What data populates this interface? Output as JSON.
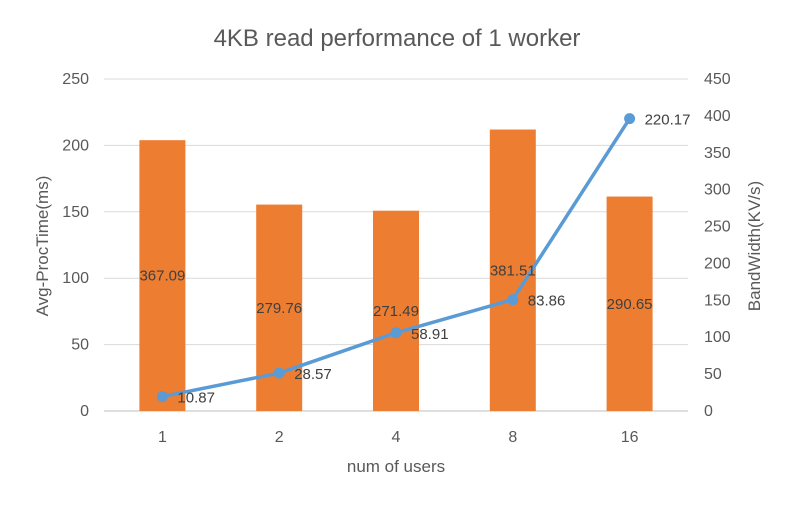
{
  "chart_data": {
    "type": "bar+line",
    "title": "4KB read performance of  1 worker",
    "xlabel": "num of users",
    "ylabel_left": "Avg-ProcTime(ms)",
    "ylabel_right": "BandWidth(KV/s)",
    "categories": [
      "1",
      "2",
      "4",
      "8",
      "16"
    ],
    "grid": true,
    "legend": "none",
    "axes": {
      "left": {
        "min": 0,
        "max": 250,
        "ticks": [
          0,
          50,
          100,
          150,
          200,
          250
        ]
      },
      "right": {
        "min": 0,
        "max": 450,
        "ticks": [
          0,
          50,
          100,
          150,
          200,
          250,
          300,
          350,
          400,
          450
        ]
      }
    },
    "series": [
      {
        "type": "bar",
        "axis": "right",
        "color": "#ed7d31",
        "values": [
          367.09,
          279.76,
          271.49,
          381.51,
          290.65
        ],
        "labels": [
          "367.09",
          "279.76",
          "271.49",
          "381.51",
          "290.65"
        ]
      },
      {
        "type": "line",
        "axis": "left",
        "color": "#5b9bd5",
        "values": [
          10.87,
          28.57,
          58.91,
          83.86,
          220.17
        ],
        "labels": [
          "10.87",
          "28.57",
          "58.91",
          "83.86",
          "220.17"
        ]
      }
    ]
  }
}
